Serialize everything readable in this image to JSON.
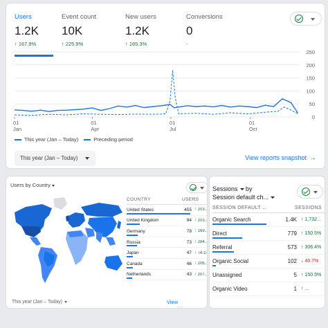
{
  "colors": {
    "accent": "#1a73e8",
    "positive": "#137333",
    "negative": "#c5221f",
    "map_base": "#dadce0"
  },
  "overview": {
    "metrics": [
      {
        "label": "Users",
        "value": "1.2K",
        "delta": "↑ 167.9%",
        "active": true
      },
      {
        "label": "Event count",
        "value": "10K",
        "delta": "↑ 225.9%",
        "active": false
      },
      {
        "label": "New users",
        "value": "1.2K",
        "delta": "↑ 165.3%",
        "active": false
      },
      {
        "label": "Conversions",
        "value": "0",
        "delta": "-",
        "active": false
      }
    ],
    "status_icon": "check-circle-icon",
    "legend": {
      "current": "This year (Jan – Today)",
      "previous": "Preceding period"
    },
    "date_range": "This year (Jan – Today)",
    "link": "View reports snapshot"
  },
  "chart_data": {
    "type": "line",
    "x_ticks": [
      {
        "day": "01",
        "month": "Jan",
        "index": 0
      },
      {
        "day": "01",
        "month": "Apr",
        "index": 90
      },
      {
        "day": "01",
        "month": "Jul",
        "index": 181
      },
      {
        "day": "01",
        "month": "Oct",
        "index": 273
      }
    ],
    "y_ticks": [
      0,
      50,
      100,
      150,
      200,
      250
    ],
    "ylim": [
      0,
      250
    ],
    "x_max": 330,
    "series": [
      {
        "style": "solid",
        "points": [
          [
            0,
            27
          ],
          [
            10,
            25
          ],
          [
            20,
            22
          ],
          [
            30,
            26
          ],
          [
            40,
            21
          ],
          [
            50,
            25
          ],
          [
            60,
            26
          ],
          [
            70,
            28
          ],
          [
            80,
            30
          ],
          [
            90,
            35
          ],
          [
            100,
            25
          ],
          [
            110,
            32
          ],
          [
            120,
            42
          ],
          [
            130,
            38
          ],
          [
            140,
            44
          ],
          [
            150,
            36
          ],
          [
            160,
            40
          ],
          [
            170,
            43
          ],
          [
            180,
            48
          ],
          [
            185,
            35
          ],
          [
            190,
            38
          ],
          [
            200,
            43
          ],
          [
            210,
            40
          ],
          [
            220,
            42
          ],
          [
            230,
            39
          ],
          [
            240,
            44
          ],
          [
            250,
            38
          ],
          [
            260,
            42
          ],
          [
            270,
            40
          ],
          [
            280,
            36
          ],
          [
            290,
            45
          ],
          [
            300,
            40
          ],
          [
            310,
            70
          ],
          [
            320,
            55
          ],
          [
            328,
            15
          ]
        ]
      },
      {
        "style": "dashed",
        "points": [
          [
            0,
            8
          ],
          [
            20,
            6
          ],
          [
            40,
            10
          ],
          [
            60,
            8
          ],
          [
            80,
            12
          ],
          [
            100,
            10
          ],
          [
            120,
            9
          ],
          [
            140,
            11
          ],
          [
            160,
            10
          ],
          [
            175,
            12
          ],
          [
            180,
            60
          ],
          [
            183,
            180
          ],
          [
            186,
            75
          ],
          [
            190,
            12
          ],
          [
            210,
            14
          ],
          [
            230,
            10
          ],
          [
            250,
            16
          ],
          [
            270,
            12
          ],
          [
            290,
            18
          ],
          [
            305,
            22
          ],
          [
            312,
            38
          ],
          [
            318,
            30
          ],
          [
            328,
            12
          ]
        ]
      }
    ]
  },
  "countries": {
    "title": "Users by Country",
    "headers": {
      "country": "COUNTRY",
      "users": "USERS"
    },
    "rows": [
      {
        "name": "United States",
        "value": "455",
        "delta": "↑ 203...",
        "share": 1.0
      },
      {
        "name": "United Kingdom",
        "value": "94",
        "delta": "↑ 203...",
        "share": 0.21
      },
      {
        "name": "Germany",
        "value": "78",
        "delta": "↑ 169...",
        "share": 0.17
      },
      {
        "name": "Russia",
        "value": "73",
        "delta": "↑ 284...",
        "share": 0.16
      },
      {
        "name": "Japan",
        "value": "47",
        "delta": "↑ 74.1%",
        "share": 0.1
      },
      {
        "name": "Canada",
        "value": "46",
        "delta": "↑ 206...",
        "share": 0.1
      },
      {
        "name": "Netherlands",
        "value": "43",
        "delta": "↑ 207...",
        "share": 0.09
      }
    ],
    "date_range": "This year (Jan – Today)",
    "link": "View countries"
  },
  "sessions": {
    "title_line1": "Sessions",
    "title_by": "by",
    "title_line2": "Session default ch...",
    "headers": {
      "channel": "SESSION DEFAULT ...",
      "sessions": "SESSIONS"
    },
    "rows": [
      {
        "name": "Organic Search",
        "value": "1.4K",
        "delta": "↑ 1,732...",
        "direction": "up",
        "share": 1.0
      },
      {
        "name": "Direct",
        "value": "779",
        "delta": "↑ 150.5%",
        "direction": "up",
        "share": 0.55
      },
      {
        "name": "Referral",
        "value": "573",
        "delta": "↑ 306.4%",
        "direction": "up",
        "share": 0.4
      },
      {
        "name": "Organic Social",
        "value": "102",
        "delta": "↓ 40.7%",
        "direction": "down",
        "share": 0.07
      },
      {
        "name": "Unassigned",
        "value": "5",
        "delta": "↑ 150.5%",
        "direction": "up",
        "share": 0.0
      },
      {
        "name": "Organic Video",
        "value": "1",
        "delta": "↑ ...",
        "direction": "up",
        "share": 0.0
      }
    ]
  }
}
